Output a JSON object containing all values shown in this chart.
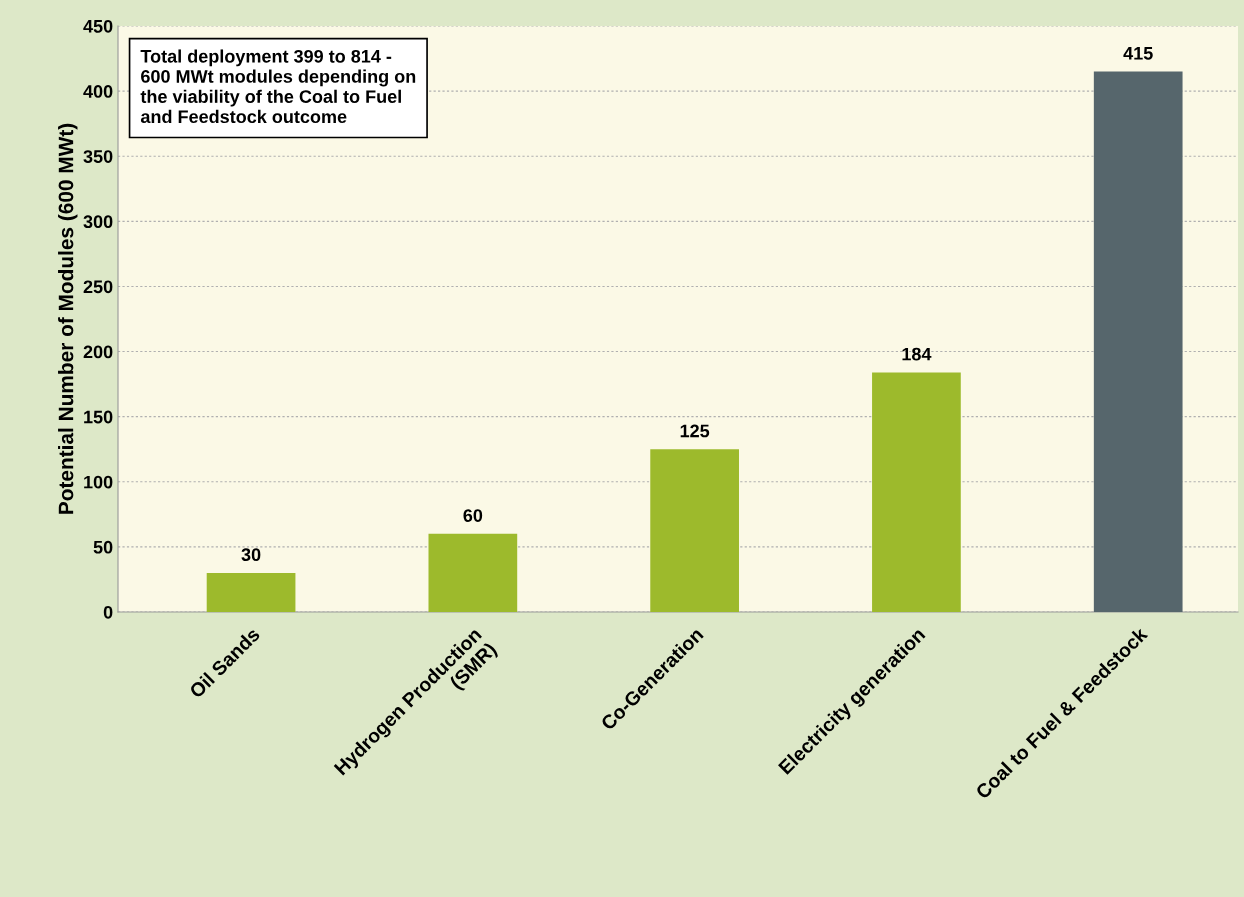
{
  "chart_data": {
    "type": "bar",
    "ylabel": "Potential Number of Modules (600 MWt)",
    "categories": [
      "Oil Sands",
      "Hydrogen Production\n(SMR)",
      "Co-Generation",
      "Electricity generation",
      "Coal to Fuel & Feedstock"
    ],
    "values": [
      30,
      60,
      125,
      184,
      415
    ],
    "colors": [
      "#9dba2c",
      "#9dba2c",
      "#9dba2c",
      "#9dba2c",
      "#56666c"
    ],
    "ylim": [
      0,
      450
    ],
    "yticks": [
      0,
      50,
      100,
      150,
      200,
      250,
      300,
      350,
      400,
      450
    ],
    "grid": "y",
    "data_labels": true,
    "annotations": [
      "Total deployment 399 to 814 -\n600 MWt modules depending on\nthe viability of the Coal to Fuel\nand Feedstock outcome"
    ]
  }
}
